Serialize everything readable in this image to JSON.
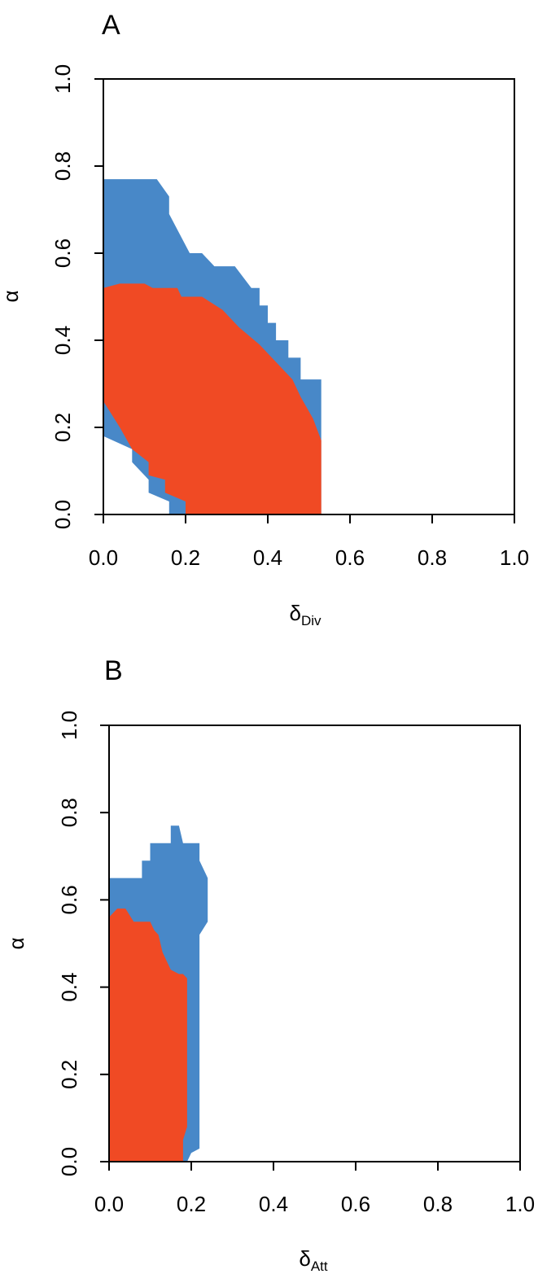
{
  "colors": {
    "blue": "#4888c8",
    "red": "#f04a24",
    "axis": "#000000"
  },
  "chart_data": [
    {
      "type": "area",
      "panel_label": "A",
      "xlabel_main": "δ",
      "xlabel_sub": "Div",
      "ylabel": "α",
      "xlim": [
        0,
        1
      ],
      "ylim": [
        0,
        1
      ],
      "x_ticks": [
        "0.0",
        "0.2",
        "0.4",
        "0.6",
        "0.8",
        "1.0"
      ],
      "y_ticks": [
        "0.0",
        "0.2",
        "0.4",
        "0.6",
        "0.8",
        "1.0"
      ],
      "grid": false,
      "legend": "none",
      "regions": [
        {
          "color": "blue",
          "polygon": [
            [
              0,
              0.77
            ],
            [
              0.13,
              0.77
            ],
            [
              0.16,
              0.73
            ],
            [
              0.16,
              0.69
            ],
            [
              0.21,
              0.6
            ],
            [
              0.24,
              0.6
            ],
            [
              0.27,
              0.57
            ],
            [
              0.32,
              0.57
            ],
            [
              0.36,
              0.52
            ],
            [
              0.38,
              0.52
            ],
            [
              0.38,
              0.48
            ],
            [
              0.4,
              0.48
            ],
            [
              0.4,
              0.44
            ],
            [
              0.42,
              0.44
            ],
            [
              0.42,
              0.4
            ],
            [
              0.45,
              0.4
            ],
            [
              0.45,
              0.36
            ],
            [
              0.48,
              0.36
            ],
            [
              0.48,
              0.31
            ],
            [
              0.53,
              0.31
            ],
            [
              0.53,
              0.0
            ],
            [
              0.16,
              0.0
            ],
            [
              0.16,
              0.03
            ],
            [
              0.11,
              0.05
            ],
            [
              0.11,
              0.08
            ],
            [
              0.07,
              0.12
            ],
            [
              0.07,
              0.15
            ],
            [
              0.0,
              0.18
            ]
          ]
        },
        {
          "color": "red",
          "polygon": [
            [
              0,
              0.52
            ],
            [
              0.04,
              0.53
            ],
            [
              0.1,
              0.53
            ],
            [
              0.12,
              0.52
            ],
            [
              0.18,
              0.52
            ],
            [
              0.19,
              0.5
            ],
            [
              0.24,
              0.5
            ],
            [
              0.29,
              0.47
            ],
            [
              0.33,
              0.43
            ],
            [
              0.38,
              0.39
            ],
            [
              0.42,
              0.35
            ],
            [
              0.46,
              0.31
            ],
            [
              0.48,
              0.27
            ],
            [
              0.51,
              0.22
            ],
            [
              0.53,
              0.17
            ],
            [
              0.53,
              0.0
            ],
            [
              0.2,
              0.0
            ],
            [
              0.2,
              0.03
            ],
            [
              0.15,
              0.05
            ],
            [
              0.15,
              0.08
            ],
            [
              0.11,
              0.09
            ],
            [
              0.11,
              0.12
            ],
            [
              0.07,
              0.15
            ],
            [
              0.04,
              0.2
            ],
            [
              0.0,
              0.26
            ]
          ]
        }
      ]
    },
    {
      "type": "area",
      "panel_label": "B",
      "xlabel_main": "δ",
      "xlabel_sub": "Att",
      "ylabel": "α",
      "xlim": [
        0,
        1
      ],
      "ylim": [
        0,
        1
      ],
      "x_ticks": [
        "0.0",
        "0.2",
        "0.4",
        "0.6",
        "0.8",
        "1.0"
      ],
      "y_ticks": [
        "0.0",
        "0.2",
        "0.4",
        "0.6",
        "0.8",
        "1.0"
      ],
      "grid": false,
      "legend": "none",
      "regions": [
        {
          "color": "blue",
          "polygon": [
            [
              0,
              0.65
            ],
            [
              0.08,
              0.65
            ],
            [
              0.08,
              0.69
            ],
            [
              0.1,
              0.69
            ],
            [
              0.1,
              0.73
            ],
            [
              0.15,
              0.73
            ],
            [
              0.15,
              0.77
            ],
            [
              0.17,
              0.77
            ],
            [
              0.18,
              0.73
            ],
            [
              0.22,
              0.73
            ],
            [
              0.22,
              0.69
            ],
            [
              0.24,
              0.65
            ],
            [
              0.24,
              0.55
            ],
            [
              0.22,
              0.52
            ],
            [
              0.22,
              0.03
            ],
            [
              0.2,
              0.02
            ],
            [
              0.19,
              0.0
            ],
            [
              0.0,
              0.0
            ]
          ]
        },
        {
          "color": "red",
          "polygon": [
            [
              0,
              0.56
            ],
            [
              0.02,
              0.58
            ],
            [
              0.04,
              0.58
            ],
            [
              0.06,
              0.55
            ],
            [
              0.08,
              0.55
            ],
            [
              0.1,
              0.55
            ],
            [
              0.11,
              0.53
            ],
            [
              0.12,
              0.52
            ],
            [
              0.13,
              0.48
            ],
            [
              0.14,
              0.46
            ],
            [
              0.15,
              0.44
            ],
            [
              0.17,
              0.43
            ],
            [
              0.18,
              0.43
            ],
            [
              0.19,
              0.42
            ],
            [
              0.19,
              0.08
            ],
            [
              0.18,
              0.05
            ],
            [
              0.18,
              0.0
            ],
            [
              0.0,
              0.0
            ]
          ]
        }
      ]
    }
  ]
}
